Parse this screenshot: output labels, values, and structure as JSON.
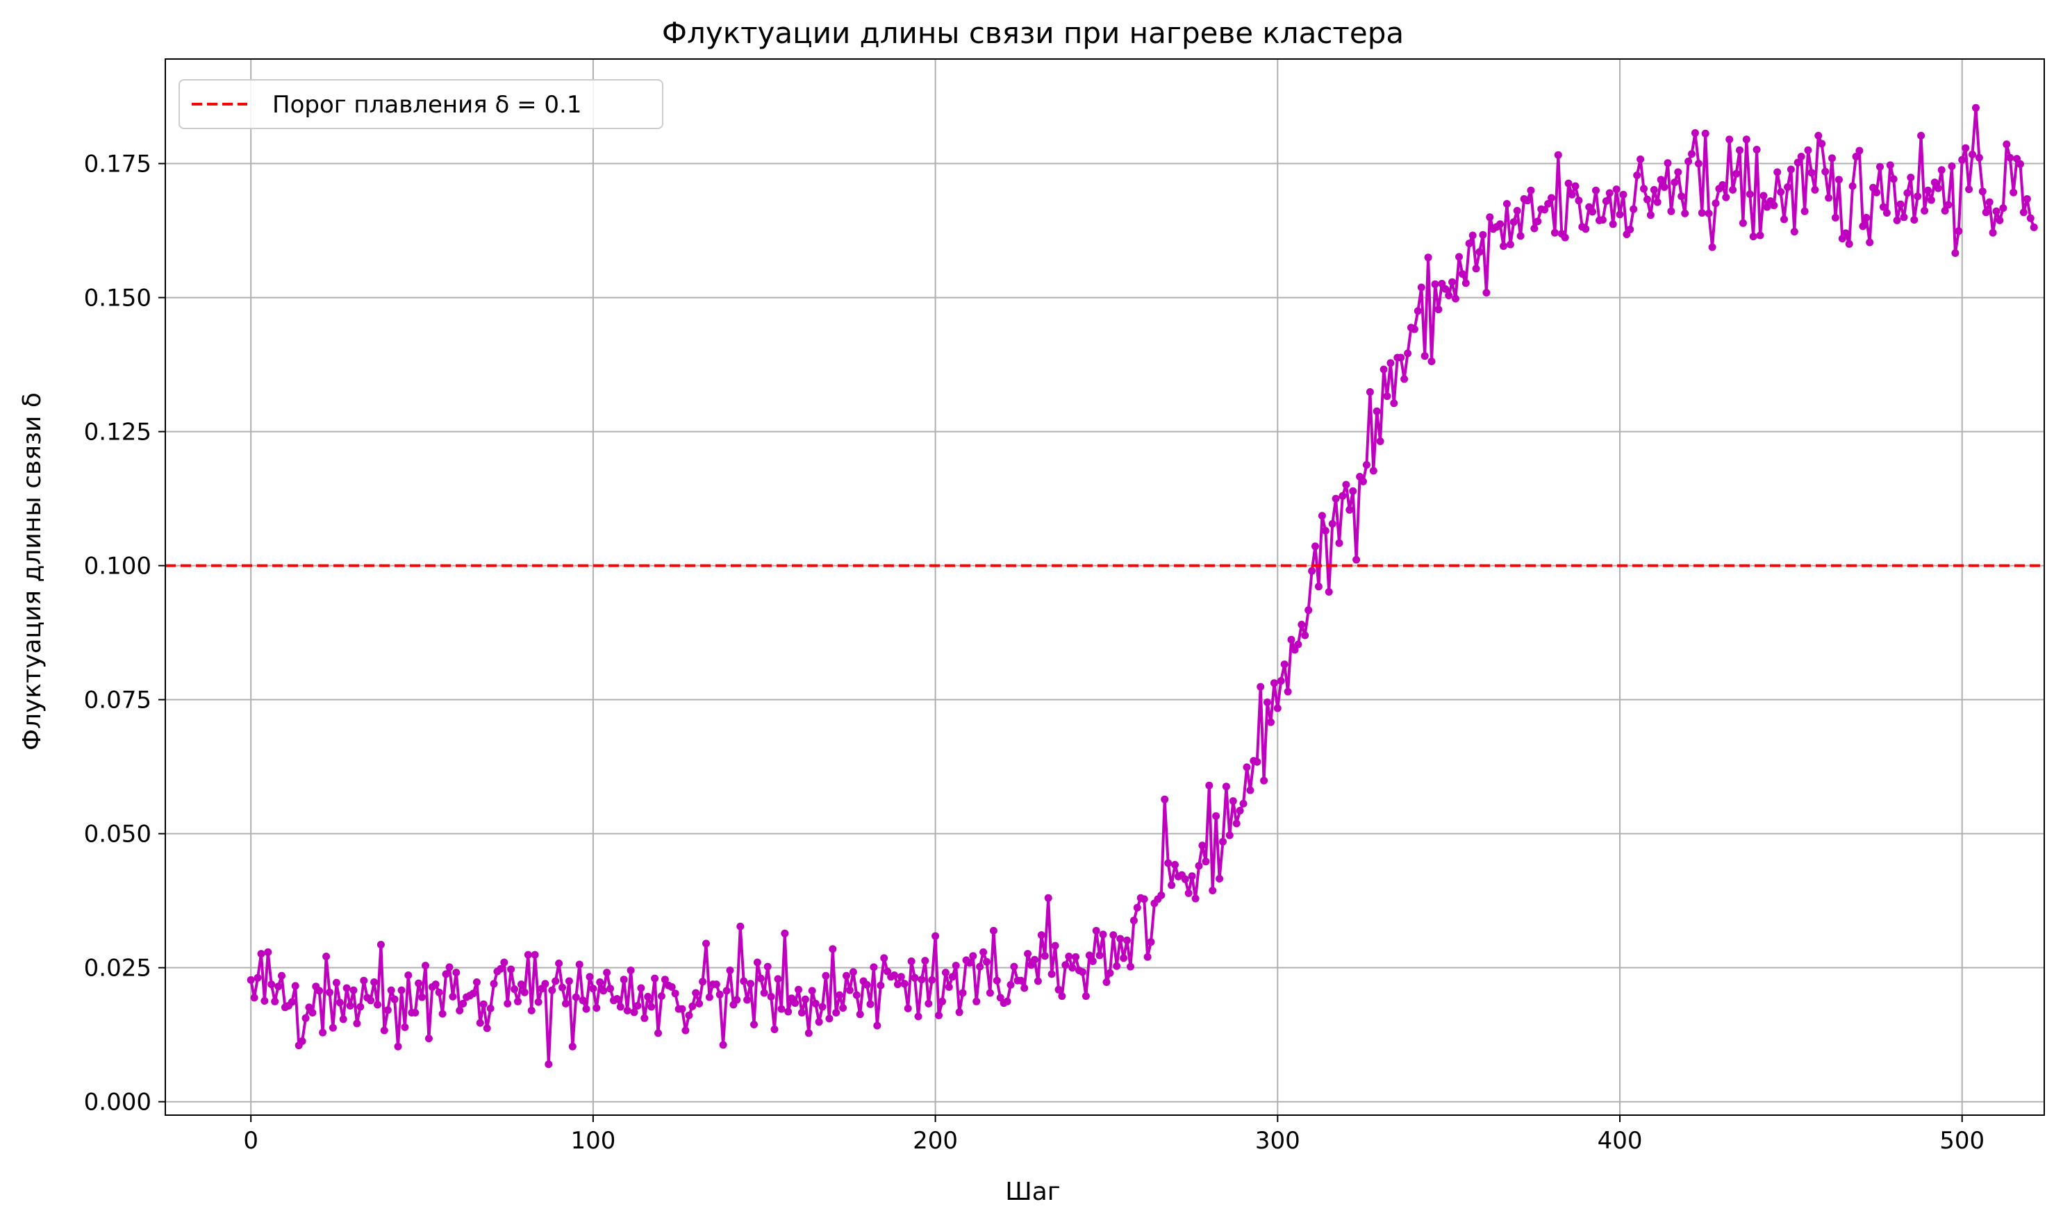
{
  "chart_data": {
    "type": "line",
    "title": "Флуктуации длины связи при нагреве кластера",
    "xlabel": "Шаг",
    "ylabel": "Флуктуация длины связи δ",
    "xlim": [
      -25,
      524
    ],
    "ylim": [
      -0.0025,
      0.1945
    ],
    "x_ticks": [
      0,
      100,
      200,
      300,
      400,
      500
    ],
    "x_tick_labels": [
      "0",
      "100",
      "200",
      "300",
      "400",
      "500"
    ],
    "y_ticks": [
      0.0,
      0.025,
      0.05,
      0.075,
      0.1,
      0.125,
      0.15,
      0.175
    ],
    "y_tick_labels": [
      "0.000",
      "0.025",
      "0.050",
      "0.075",
      "0.100",
      "0.125",
      "0.150",
      "0.175"
    ],
    "grid": true,
    "legend": {
      "placement": "upper-left",
      "entries": [
        {
          "label": "Порог плавления δ = 0.1",
          "color": "#ff0000",
          "style": "dashed"
        }
      ]
    },
    "threshold": {
      "y": 0.1,
      "color": "#ff0000",
      "style": "dashed"
    },
    "series": [
      {
        "color": "#bf00bf",
        "marker": "circle",
        "x_start": 0,
        "x_step": 1,
        "values": [
          0.0227,
          0.0194,
          0.0231,
          0.0276,
          0.0188,
          0.0279,
          0.0219,
          0.0187,
          0.0215,
          0.0235,
          0.0176,
          0.0179,
          0.0186,
          0.0216,
          0.0105,
          0.0113,
          0.0156,
          0.0176,
          0.0166,
          0.0215,
          0.0207,
          0.0129,
          0.0271,
          0.0204,
          0.0138,
          0.0222,
          0.0185,
          0.0154,
          0.0212,
          0.0179,
          0.0208,
          0.0146,
          0.0177,
          0.0226,
          0.0194,
          0.0189,
          0.0223,
          0.0181,
          0.0293,
          0.0133,
          0.0171,
          0.0208,
          0.0191,
          0.0103,
          0.0208,
          0.0139,
          0.0236,
          0.0166,
          0.0166,
          0.0221,
          0.0195,
          0.0254,
          0.0118,
          0.0214,
          0.0219,
          0.0204,
          0.0164,
          0.0238,
          0.0251,
          0.0196,
          0.0241,
          0.017,
          0.0183,
          0.0195,
          0.0198,
          0.0202,
          0.0223,
          0.0147,
          0.0182,
          0.0137,
          0.0174,
          0.022,
          0.0243,
          0.0248,
          0.026,
          0.0183,
          0.0247,
          0.021,
          0.0187,
          0.0219,
          0.0204,
          0.0274,
          0.017,
          0.0274,
          0.0186,
          0.0211,
          0.022,
          0.007,
          0.0208,
          0.0225,
          0.0258,
          0.0213,
          0.0183,
          0.0225,
          0.0103,
          0.0195,
          0.0256,
          0.0189,
          0.0173,
          0.0233,
          0.0211,
          0.0175,
          0.0223,
          0.0207,
          0.0241,
          0.0211,
          0.0189,
          0.0192,
          0.0177,
          0.0228,
          0.017,
          0.0245,
          0.0167,
          0.0179,
          0.0212,
          0.0156,
          0.0196,
          0.0177,
          0.023,
          0.0128,
          0.0197,
          0.0228,
          0.0217,
          0.0214,
          0.0202,
          0.0173,
          0.0173,
          0.0133,
          0.0161,
          0.0178,
          0.0203,
          0.0183,
          0.0224,
          0.0295,
          0.0195,
          0.0219,
          0.0219,
          0.02,
          0.0106,
          0.0207,
          0.0245,
          0.0181,
          0.019,
          0.0327,
          0.0225,
          0.019,
          0.022,
          0.0144,
          0.026,
          0.023,
          0.0203,
          0.0252,
          0.0196,
          0.0135,
          0.0229,
          0.0173,
          0.0314,
          0.0168,
          0.0193,
          0.0184,
          0.0209,
          0.0166,
          0.0191,
          0.0128,
          0.0207,
          0.0183,
          0.0149,
          0.0177,
          0.0235,
          0.0155,
          0.0285,
          0.0166,
          0.0199,
          0.0175,
          0.0235,
          0.0208,
          0.0242,
          0.0199,
          0.0163,
          0.0225,
          0.0218,
          0.0182,
          0.0251,
          0.0142,
          0.0217,
          0.0268,
          0.0243,
          0.0233,
          0.0236,
          0.0219,
          0.0233,
          0.022,
          0.0174,
          0.0262,
          0.0231,
          0.0159,
          0.0228,
          0.0263,
          0.0183,
          0.0227,
          0.0309,
          0.0161,
          0.0187,
          0.0241,
          0.0214,
          0.0233,
          0.0254,
          0.0167,
          0.0203,
          0.0264,
          0.0259,
          0.0272,
          0.0187,
          0.0252,
          0.0279,
          0.0261,
          0.0203,
          0.0319,
          0.0226,
          0.0194,
          0.0184,
          0.0187,
          0.0218,
          0.0252,
          0.0226,
          0.0226,
          0.0212,
          0.0276,
          0.0255,
          0.0265,
          0.0225,
          0.0311,
          0.0272,
          0.038,
          0.0238,
          0.0291,
          0.0209,
          0.0197,
          0.0255,
          0.0271,
          0.025,
          0.027,
          0.0245,
          0.0242,
          0.0197,
          0.0273,
          0.0262,
          0.0319,
          0.0273,
          0.0312,
          0.0223,
          0.024,
          0.0311,
          0.0253,
          0.0304,
          0.0268,
          0.0301,
          0.0252,
          0.0338,
          0.0362,
          0.038,
          0.0378,
          0.027,
          0.0298,
          0.037,
          0.0378,
          0.0385,
          0.0564,
          0.0445,
          0.0404,
          0.0442,
          0.042,
          0.0423,
          0.0415,
          0.0389,
          0.0421,
          0.0379,
          0.044,
          0.0478,
          0.0448,
          0.059,
          0.0394,
          0.0533,
          0.0416,
          0.0485,
          0.0588,
          0.0497,
          0.0561,
          0.0519,
          0.0543,
          0.0556,
          0.0624,
          0.0581,
          0.0636,
          0.0634,
          0.0774,
          0.0599,
          0.0745,
          0.0708,
          0.0781,
          0.0734,
          0.0785,
          0.0816,
          0.0765,
          0.0862,
          0.0843,
          0.0853,
          0.089,
          0.087,
          0.0917,
          0.099,
          0.1036,
          0.0961,
          0.1093,
          0.1065,
          0.0951,
          0.1078,
          0.1125,
          0.1042,
          0.113,
          0.1151,
          0.1104,
          0.1139,
          0.1011,
          0.1166,
          0.1157,
          0.1188,
          0.1324,
          0.1177,
          0.1288,
          0.1232,
          0.1366,
          0.1316,
          0.1378,
          0.1303,
          0.1388,
          0.1388,
          0.1348,
          0.1396,
          0.1444,
          0.1441,
          0.1475,
          0.1519,
          0.1391,
          0.1575,
          0.1381,
          0.1525,
          0.1478,
          0.1526,
          0.1516,
          0.1504,
          0.1529,
          0.1498,
          0.1576,
          0.1544,
          0.1527,
          0.1601,
          0.1616,
          0.1554,
          0.1585,
          0.1617,
          0.1509,
          0.165,
          0.1628,
          0.1632,
          0.1637,
          0.1596,
          0.1675,
          0.1599,
          0.1641,
          0.1662,
          0.1615,
          0.1684,
          0.1681,
          0.17,
          0.1629,
          0.1642,
          0.1665,
          0.1664,
          0.1675,
          0.1686,
          0.1621,
          0.1766,
          0.1619,
          0.1612,
          0.1713,
          0.1692,
          0.1708,
          0.1681,
          0.1632,
          0.1628,
          0.1669,
          0.166,
          0.17,
          0.1644,
          0.1645,
          0.168,
          0.1695,
          0.1637,
          0.1702,
          0.1655,
          0.1692,
          0.1618,
          0.1627,
          0.1665,
          0.1728,
          0.1758,
          0.1703,
          0.1683,
          0.1654,
          0.1701,
          0.1678,
          0.172,
          0.1706,
          0.1751,
          0.1661,
          0.1715,
          0.1734,
          0.1689,
          0.1657,
          0.1754,
          0.1768,
          0.1807,
          0.175,
          0.1658,
          0.1806,
          0.1657,
          0.1594,
          0.1676,
          0.1703,
          0.171,
          0.1687,
          0.1795,
          0.1701,
          0.1731,
          0.1775,
          0.1639,
          0.1795,
          0.1693,
          0.1614,
          0.1776,
          0.1616,
          0.169,
          0.1669,
          0.168,
          0.1672,
          0.1734,
          0.1697,
          0.1646,
          0.1706,
          0.1739,
          0.1623,
          0.1752,
          0.1763,
          0.1661,
          0.1775,
          0.1733,
          0.1701,
          0.1802,
          0.1787,
          0.1735,
          0.1686,
          0.176,
          0.1649,
          0.172,
          0.161,
          0.162,
          0.16,
          0.1708,
          0.1763,
          0.1774,
          0.1633,
          0.1649,
          0.1603,
          0.1705,
          0.1696,
          0.1744,
          0.1669,
          0.1658,
          0.1747,
          0.1721,
          0.1644,
          0.1674,
          0.165,
          0.1695,
          0.1724,
          0.1645,
          0.1689,
          0.1802,
          0.1662,
          0.17,
          0.1682,
          0.1715,
          0.1704,
          0.1738,
          0.1662,
          0.1673,
          0.1745,
          0.1583,
          0.1624,
          0.1757,
          0.1779,
          0.1702,
          0.1767,
          0.1854,
          0.1761,
          0.1698,
          0.1659,
          0.1678,
          0.1621,
          0.1661,
          0.1644,
          0.1667,
          0.1786,
          0.1761,
          0.1696,
          0.1759,
          0.1749,
          0.1659,
          0.1684,
          0.1648,
          0.1631
        ]
      }
    ]
  }
}
